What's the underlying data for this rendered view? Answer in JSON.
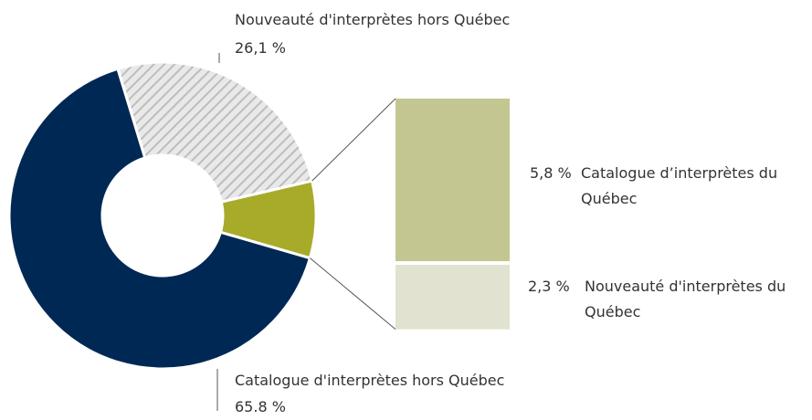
{
  "chart_data": {
    "type": "donut",
    "categories": [
      "Catalogue d'interprètes hors Québec",
      "Nouveauté d'interprètes hors Québec"
    ],
    "values": [
      65.8,
      26.1
    ],
    "value_labels": [
      "65.8 %",
      "26,1 %"
    ],
    "colors": [
      "#002855",
      "#c8c8c8"
    ],
    "breakdown": {
      "color": "#a8ab2a",
      "categories": [
        "Catalogue d’interprètes du Québec",
        "Nouveauté d'interprètes du Québec"
      ],
      "values": [
        5.8,
        2.3
      ],
      "value_labels": [
        "5,8 %",
        "2,3 %"
      ],
      "colors": [
        "#c3c690",
        "#e1e2cf"
      ]
    }
  }
}
